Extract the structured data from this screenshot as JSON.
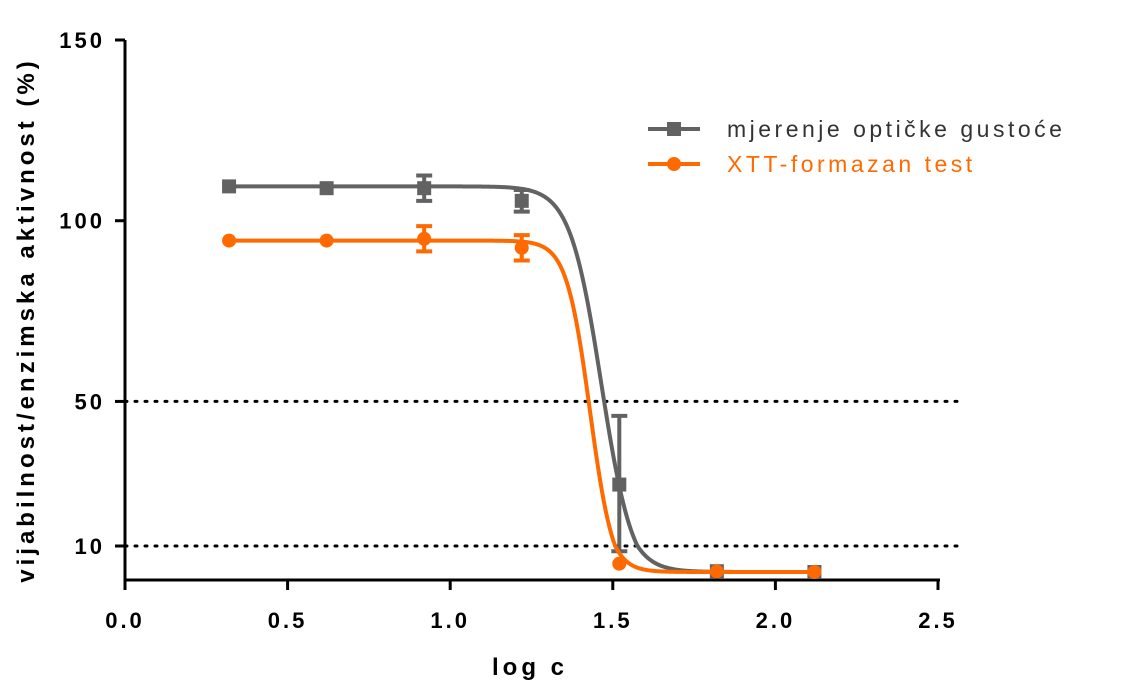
{
  "chart_data": {
    "type": "line",
    "xlabel": "log c",
    "ylabel": "vijabilnost/enzimska aktivnost (%)",
    "xlim": [
      0.0,
      2.5
    ],
    "ylim": [
      0,
      150
    ],
    "y_axis_break": true,
    "x_ticks": [
      {
        "value": 0.0,
        "label": "0.0"
      },
      {
        "value": 0.5,
        "label": "0.5"
      },
      {
        "value": 1.0,
        "label": "1.0"
      },
      {
        "value": 1.5,
        "label": "1.5"
      },
      {
        "value": 2.0,
        "label": "2.0"
      },
      {
        "value": 2.5,
        "label": "2.5"
      }
    ],
    "y_ticks": [
      {
        "value": 10,
        "label": "10"
      },
      {
        "value": 50,
        "label": "50"
      },
      {
        "value": 100,
        "label": "100"
      },
      {
        "value": 150,
        "label": "150"
      }
    ],
    "reference_lines": [
      50,
      10
    ],
    "legend_position": "top-right",
    "series": [
      {
        "name": "mjerenje optičke gustoće",
        "color": "#626262",
        "marker": "square",
        "x": [
          0.32,
          0.62,
          0.92,
          1.22,
          1.52,
          1.82,
          2.12
        ],
        "y": [
          109.5,
          109.0,
          109.0,
          105.5,
          27.0,
          0.3,
          0.0
        ],
        "error": [
          0,
          0,
          3.5,
          3.0,
          19.0,
          0,
          0
        ],
        "fit": {
          "top": 109.5,
          "bottom": 0.0,
          "log_ec50": 1.465,
          "hill_slope": -9.0
        }
      },
      {
        "name": "XTT-formazan test",
        "color": "#ff6a00",
        "marker": "circle",
        "x": [
          0.32,
          0.62,
          0.92,
          1.22,
          1.52,
          1.82,
          2.12
        ],
        "y": [
          94.5,
          94.5,
          95.0,
          92.5,
          3.2,
          0.2,
          0.0
        ],
        "error": [
          0,
          0,
          3.5,
          3.5,
          0,
          0,
          0
        ],
        "fit": {
          "top": 94.5,
          "bottom": 0.0,
          "log_ec50": 1.43,
          "hill_slope": -12.0
        }
      }
    ]
  }
}
